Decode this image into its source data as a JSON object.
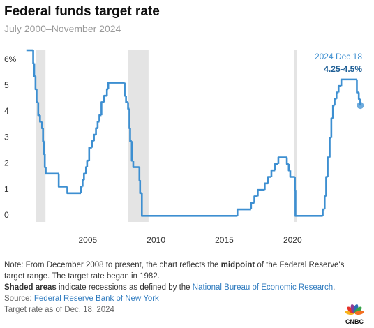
{
  "chart_data": {
    "type": "step",
    "title": "Federal funds target rate",
    "subtitle": "July 2000–November 2024",
    "x": [
      2000.5,
      2001.0,
      2001.08,
      2001.17,
      2001.25,
      2001.37,
      2001.5,
      2001.65,
      2001.72,
      2001.8,
      2001.85,
      2001.92,
      2002.87,
      2003.5,
      2004.5,
      2004.62,
      2004.72,
      2004.87,
      2004.95,
      2005.1,
      2005.3,
      2005.45,
      2005.6,
      2005.72,
      2005.85,
      2006.0,
      2006.2,
      2006.4,
      2006.5,
      2007.7,
      2007.8,
      2007.95,
      2008.05,
      2008.1,
      2008.22,
      2008.33,
      2008.78,
      2008.83,
      2008.96,
      2015.96,
      2016.96,
      2017.2,
      2017.45,
      2017.96,
      2018.2,
      2018.45,
      2018.72,
      2018.96,
      2019.58,
      2019.72,
      2019.83,
      2020.17,
      2020.21,
      2022.21,
      2022.35,
      2022.46,
      2022.57,
      2022.72,
      2022.84,
      2022.96,
      2023.08,
      2023.22,
      2023.37,
      2023.57,
      2024.71,
      2024.85,
      2024.96
    ],
    "series": [
      {
        "name": "Federal funds target rate",
        "color": "#3d8fd1",
        "values": [
          6.5,
          6.0,
          5.5,
          5.0,
          4.5,
          4.0,
          3.75,
          3.5,
          3.0,
          2.5,
          2.0,
          1.75,
          1.25,
          1.0,
          1.25,
          1.5,
          1.75,
          2.0,
          2.25,
          2.75,
          3.0,
          3.25,
          3.5,
          3.75,
          4.0,
          4.5,
          4.75,
          5.0,
          5.25,
          4.75,
          4.5,
          4.25,
          3.5,
          3.0,
          2.25,
          2.0,
          1.5,
          1.0,
          0.125,
          0.375,
          0.625,
          0.875,
          1.125,
          1.375,
          1.625,
          1.875,
          2.125,
          2.375,
          2.125,
          1.875,
          1.625,
          1.125,
          0.125,
          0.375,
          0.875,
          1.625,
          2.375,
          3.125,
          3.875,
          4.375,
          4.625,
          4.875,
          5.125,
          5.375,
          4.875,
          4.625,
          4.375
        ]
      }
    ],
    "recessions": [
      [
        2001.2,
        2001.9
      ],
      [
        2007.95,
        2009.45
      ],
      [
        2020.1,
        2020.3
      ]
    ],
    "recession_color": "#e4e4e4",
    "xlim": [
      2000,
      2025.3
    ],
    "xticks": [
      2005,
      2010,
      2015,
      2020
    ],
    "ylim": [
      0,
      6.5
    ],
    "yticks": [
      0,
      1,
      2,
      3,
      4,
      5,
      {
        "value": 6,
        "label": "6%"
      }
    ],
    "annotation": {
      "date": "2024 Dec 18",
      "range": "4.25-4.5%"
    },
    "notes": {
      "note_start": "Note: From December 2008 to present, the chart reflects the ",
      "note_bold": "midpoint",
      "note_end": " of the Federal Reserve's target range. The target rate began in 1982.",
      "shade_bold": "Shaded areas",
      "shade_text": " indicate recessions as defined by the ",
      "shade_link": "National Bureau of Economic Research",
      "shade_end": ".",
      "source_label": "Source: ",
      "source_link": "Federal Reserve Bank of New York",
      "as_of": "Target rate as of Dec. 18, 2024"
    },
    "brand": "CNBC"
  }
}
